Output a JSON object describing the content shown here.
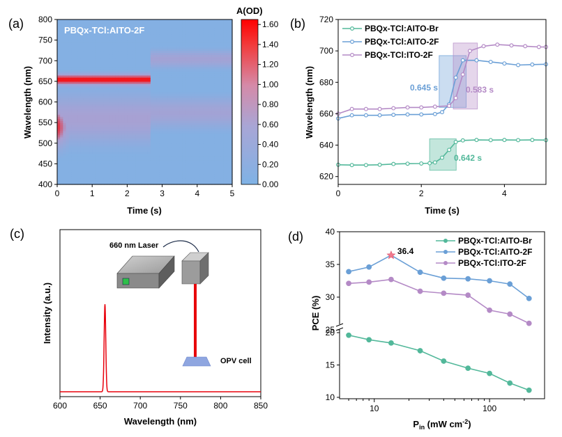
{
  "panels": {
    "a": "(a)",
    "b": "(b)",
    "c": "(c)",
    "d": "(d)"
  },
  "colors": {
    "green": "#52b89a",
    "blue": "#6a9fd6",
    "purple": "#b48ac6",
    "red": "#e8000b",
    "heat_low": "#7fb2e5",
    "heat_high": "#ff0000"
  },
  "chart_data": [
    {
      "id": "a",
      "type": "heatmap",
      "title": "PBQx-TCl:AITO-2F",
      "xlabel": "Time (s)",
      "ylabel": "Wavelength (nm)",
      "xlim": [
        0,
        5
      ],
      "ylim": [
        400,
        800
      ],
      "xticks": [
        "0",
        "1",
        "2",
        "3",
        "4",
        "5"
      ],
      "yticks": [
        "400",
        "450",
        "500",
        "550",
        "600",
        "650",
        "700",
        "750",
        "800"
      ],
      "colorbar": {
        "label": "A(OD)",
        "range": [
          0,
          1.65
        ],
        "ticks": [
          "0.00",
          "0.20",
          "0.40",
          "0.60",
          "0.80",
          "1.00",
          "1.20",
          "1.40",
          "1.60"
        ]
      },
      "features": [
        {
          "t_start": 0,
          "t_end": 2.65,
          "center_nm": 655,
          "width_nm": 14,
          "peak": 1.6
        },
        {
          "t_start": 0,
          "t_end": 0.6,
          "center_nm": 540,
          "width_nm": 50,
          "peak": 1.5
        },
        {
          "t_start": 0,
          "t_end": 2.65,
          "center_nm": 560,
          "width_nm": 60,
          "peak": 0.85
        },
        {
          "t_start": 2.65,
          "t_end": 5,
          "center_nm": 705,
          "width_nm": 22,
          "peak": 0.75
        },
        {
          "t_start": 2.65,
          "t_end": 5,
          "center_nm": 575,
          "width_nm": 38,
          "peak": 0.75
        }
      ]
    },
    {
      "id": "b",
      "type": "line",
      "xlabel": "Time (s)",
      "ylabel": "Wavelength (nm)",
      "xlim": [
        0,
        5
      ],
      "ylim": [
        615,
        720
      ],
      "xticks": [
        "0",
        "2",
        "4"
      ],
      "yticks": [
        "620",
        "640",
        "660",
        "680",
        "700",
        "720"
      ],
      "series": [
        {
          "name": "PBQx-TCl:AITO-Br",
          "color": "#52b89a",
          "x": [
            0,
            0.33,
            0.67,
            1.0,
            1.33,
            1.67,
            2.0,
            2.2,
            2.33,
            2.5,
            2.67,
            2.83,
            3.0,
            3.33,
            3.67,
            4.0,
            4.33,
            4.67,
            5.0
          ],
          "y": [
            627.5,
            627.3,
            627.3,
            627.5,
            628,
            628.2,
            628.3,
            628.5,
            629,
            632,
            637,
            642,
            643,
            643.3,
            643.2,
            643.3,
            643.2,
            643.3,
            643.2
          ]
        },
        {
          "name": "PBQx-TCl:AITO-2F",
          "color": "#6a9fd6",
          "x": [
            0,
            0.33,
            0.67,
            1.0,
            1.33,
            1.67,
            2.0,
            2.33,
            2.5,
            2.67,
            2.83,
            3.0,
            3.33,
            3.67,
            4.0,
            4.33,
            4.67,
            5.0
          ],
          "y": [
            657,
            659,
            659,
            659,
            659.3,
            659.5,
            659.5,
            659.8,
            661,
            666,
            683,
            694,
            694,
            693,
            692,
            691,
            691.3,
            691.5
          ]
        },
        {
          "name": "PBQx-TCl:ITO-2F",
          "color": "#b48ac6",
          "x": [
            0,
            0.33,
            0.67,
            1.0,
            1.33,
            1.67,
            2.0,
            2.33,
            2.67,
            2.83,
            3.0,
            3.17,
            3.5,
            3.83,
            4.17,
            4.5,
            4.83,
            5.0
          ],
          "y": [
            660,
            663,
            663,
            663,
            663.5,
            664,
            664,
            664.5,
            665,
            670,
            685,
            700,
            703,
            704,
            703.5,
            703,
            702.5,
            702.5
          ]
        }
      ],
      "annotations": [
        {
          "text": "0.645 s",
          "color": "#6a9fd6",
          "x_range": [
            2.43,
            3.08
          ],
          "y_range": [
            664,
            697
          ]
        },
        {
          "text": "0.583 s",
          "color": "#b48ac6",
          "x_range": [
            2.77,
            3.35
          ],
          "y_range": [
            663,
            705
          ]
        },
        {
          "text": "0.642 s",
          "color": "#52b89a",
          "x_range": [
            2.2,
            2.84
          ],
          "y_range": [
            624,
            644
          ]
        }
      ]
    },
    {
      "id": "c",
      "type": "line",
      "xlabel": "Wavelength (nm)",
      "ylabel": "Intensity (a.u.)",
      "xlim": [
        600,
        850
      ],
      "xticks": [
        "600",
        "650",
        "700",
        "750",
        "800",
        "850"
      ],
      "series": [
        {
          "name": "",
          "color": "#e8000b",
          "peak_nm": 656,
          "fwhm_nm": 2.4,
          "peak_fraction": 0.54
        }
      ],
      "inset": {
        "laser_label": "660 nm Laser",
        "cell_label": "OPV cell"
      }
    },
    {
      "id": "d",
      "type": "line",
      "xlabel": "Pin (mW cm-2)",
      "xlabel_main": "P",
      "xlabel_sub": "in",
      "xlabel_rest": " (mW cm",
      "xlabel_sup": "-2",
      "xlabel_end": ")",
      "ylabel": "PCE (%)",
      "xscale": "log",
      "xlim": [
        5,
        300
      ],
      "xticks": [
        "10",
        "100"
      ],
      "yticks_upper": [
        "25",
        "30",
        "35",
        "40"
      ],
      "yticks_lower": [
        "10",
        "15",
        "20"
      ],
      "axis_break": [
        20.5,
        24.5
      ],
      "series": [
        {
          "name": "PBQx-TCl:AITO-Br",
          "color": "#52b89a",
          "x": [
            6,
            9,
            14,
            25,
            40,
            65,
            100,
            150,
            220
          ],
          "y": [
            19.6,
            18.9,
            18.4,
            17.2,
            15.6,
            14.5,
            13.7,
            12.2,
            11.1
          ]
        },
        {
          "name": "PBQx-TCl:AITO-2F",
          "color": "#6a9fd6",
          "x": [
            6,
            9,
            14,
            25,
            40,
            65,
            100,
            150,
            220
          ],
          "y": [
            33.9,
            34.6,
            36.4,
            33.8,
            32.9,
            32.8,
            32.5,
            32.0,
            29.8
          ]
        },
        {
          "name": "PBQx-TCl:ITO-2F",
          "color": "#b48ac6",
          "x": [
            6,
            9,
            14,
            25,
            40,
            65,
            100,
            150,
            220
          ],
          "y": [
            32.1,
            32.3,
            32.7,
            30.9,
            30.6,
            30.3,
            28.0,
            27.4,
            26.0
          ]
        }
      ],
      "annotation": {
        "text": "36.4",
        "x": 14,
        "y": 36.4
      }
    }
  ]
}
